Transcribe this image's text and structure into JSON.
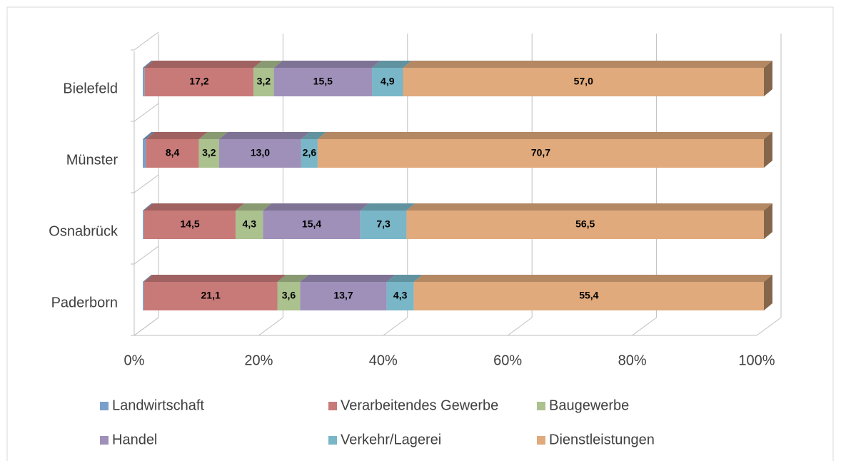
{
  "chart_data": {
    "type": "bar",
    "orientation": "horizontal",
    "stacking": "percent",
    "categories": [
      "Paderborn",
      "Osnabrück",
      "Münster",
      "Bielefeld"
    ],
    "series": [
      {
        "name": "Landwirtschaft",
        "color": "#7b9fcb",
        "values": [
          0.2,
          0.2,
          0.5,
          0.3
        ]
      },
      {
        "name": "Verarbeitendes Gewerbe",
        "color": "#c87a78",
        "values": [
          21.1,
          14.5,
          8.4,
          17.2
        ],
        "value_labels": [
          "21,1",
          "14,5",
          "8,4",
          "17,2"
        ]
      },
      {
        "name": "Baugewerbe",
        "color": "#abc18e",
        "values": [
          3.6,
          4.3,
          3.2,
          3.2
        ],
        "value_labels": [
          "3,6",
          "4,3",
          "3,2",
          "3,2"
        ]
      },
      {
        "name": "Handel",
        "color": "#9e90b9",
        "values": [
          13.7,
          15.4,
          13.0,
          15.5
        ],
        "value_labels": [
          "13,7",
          "15,4",
          "13,0",
          "15,5"
        ]
      },
      {
        "name": "Verkehr/Lagerei",
        "color": "#78b6c8",
        "values": [
          4.3,
          7.3,
          2.6,
          4.9
        ],
        "value_labels": [
          "4,3",
          "7,3",
          "2,6",
          "4,9"
        ]
      },
      {
        "name": "Dienstleistungen",
        "color": "#e0aa7c",
        "values": [
          55.4,
          56.5,
          70.7,
          57.0
        ],
        "value_labels": [
          "55,4",
          "56,5",
          "70,7",
          "57,0"
        ]
      }
    ],
    "xlim": [
      0,
      100
    ],
    "xticks": [
      {
        "value": 0,
        "label": "0%"
      },
      {
        "value": 20,
        "label": "20%"
      },
      {
        "value": 40,
        "label": "40%"
      },
      {
        "value": 60,
        "label": "60%"
      },
      {
        "value": 80,
        "label": "80%"
      },
      {
        "value": 100,
        "label": "100%"
      }
    ],
    "grid": true,
    "legend": "bottom"
  }
}
